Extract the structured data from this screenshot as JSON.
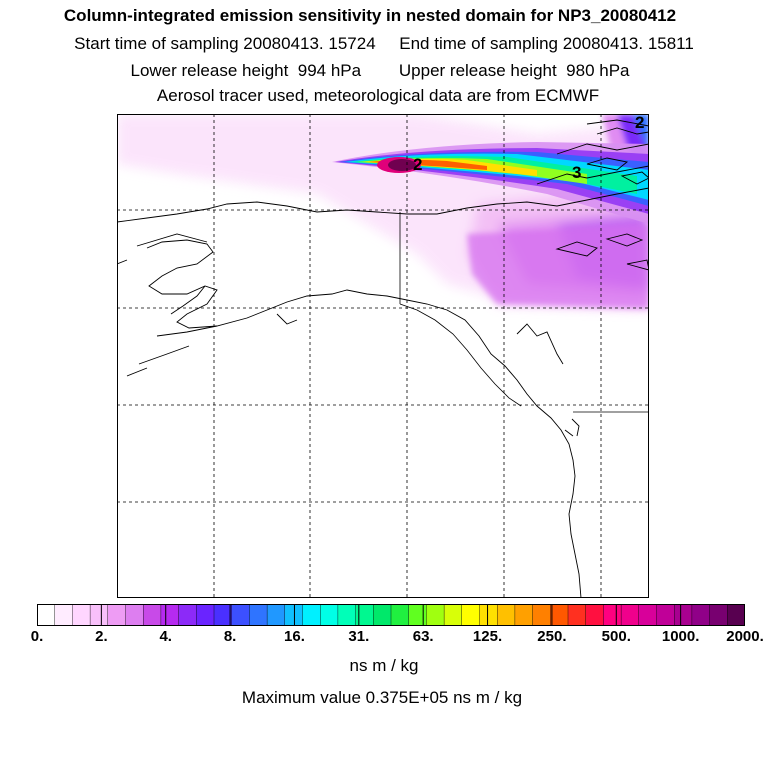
{
  "header": {
    "title": "Column-integrated emission sensitivity in nested domain for NP3_20080412",
    "line2": "Start time of sampling 20080413. 15724     End time of sampling 20080413. 15811",
    "line3": "Lower release height  994 hPa        Upper release height  980 hPa",
    "line4": "Aerosol tracer used, meteorological data are from ECMWF"
  },
  "map": {
    "contour_labels": [
      "2",
      "3",
      "2"
    ]
  },
  "colorbar": {
    "tick_labels": [
      "0.",
      "2.",
      "4.",
      "8.",
      "16.",
      "31.",
      "63.",
      "125.",
      "250.",
      "500.",
      "1000.",
      "2000."
    ],
    "colors": [
      "#ffffff",
      "#ffecff",
      "#ffd6ff",
      "#f8c0fa",
      "#ee9cf4",
      "#dd7ef0",
      "#c84ae8",
      "#b62af0",
      "#8c2af8",
      "#6a24ff",
      "#4a30ff",
      "#3c50ff",
      "#2f74ff",
      "#2098ff",
      "#10c0ff",
      "#00f0ff",
      "#00ffe6",
      "#00ffb8",
      "#00f890",
      "#00e86a",
      "#20f040",
      "#60ff20",
      "#a0ff10",
      "#d8ff08",
      "#ffff00",
      "#ffe000",
      "#ffc000",
      "#ffa000",
      "#ff8000",
      "#ff5800",
      "#ff3020",
      "#ff1040",
      "#ff0080",
      "#f0008c",
      "#d8009a",
      "#c00098",
      "#a80090",
      "#900088",
      "#780070",
      "#580050"
    ],
    "unit": "ns m / kg"
  },
  "footer": {
    "max_value": "Maximum value  0.375E+05 ns m / kg"
  }
}
